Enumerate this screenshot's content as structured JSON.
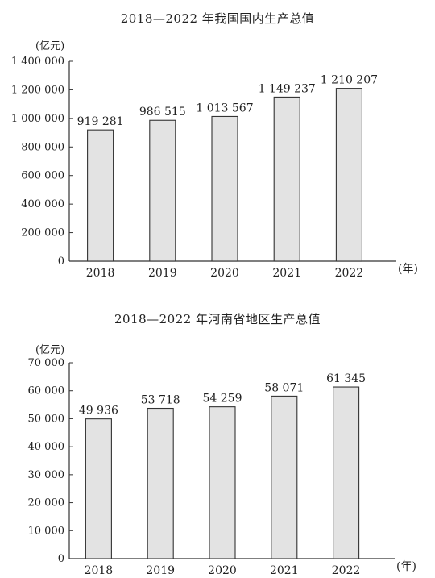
{
  "chart_data": [
    {
      "type": "bar",
      "title": "2018—2022 年我国国内生产总值",
      "ylabel": "(亿元)",
      "xlabel": "(年)",
      "categories": [
        "2018",
        "2019",
        "2020",
        "2021",
        "2022"
      ],
      "values": [
        919281,
        986515,
        1013567,
        1149237,
        1210207
      ],
      "value_labels": [
        "919 281",
        "986 515",
        "1 013 567",
        "1 149 237",
        "1 210 207"
      ],
      "ylim": [
        0,
        1400000
      ],
      "yticks": [
        0,
        200000,
        400000,
        600000,
        800000,
        1000000,
        1200000,
        1400000
      ],
      "ytick_labels": [
        "0",
        "200 000",
        "400 000",
        "600 000",
        "800 000",
        "1 000 000",
        "1 200 000",
        "1 400 000"
      ],
      "grid": false,
      "bar_color": "#e3e3e3"
    },
    {
      "type": "bar",
      "title": "2018—2022 年河南省地区生产总值",
      "ylabel": "(亿元)",
      "xlabel": "(年)",
      "categories": [
        "2018",
        "2019",
        "2020",
        "2021",
        "2022"
      ],
      "values": [
        49936,
        53718,
        54259,
        58071,
        61345
      ],
      "value_labels": [
        "49 936",
        "53 718",
        "54 259",
        "58 071",
        "61 345"
      ],
      "ylim": [
        0,
        70000
      ],
      "yticks": [
        0,
        10000,
        20000,
        30000,
        40000,
        50000,
        60000,
        70000
      ],
      "ytick_labels": [
        "0",
        "10 000",
        "20 000",
        "30 000",
        "40 000",
        "50 000",
        "60 000",
        "70 000"
      ],
      "grid": false,
      "bar_color": "#e3e3e3"
    }
  ]
}
